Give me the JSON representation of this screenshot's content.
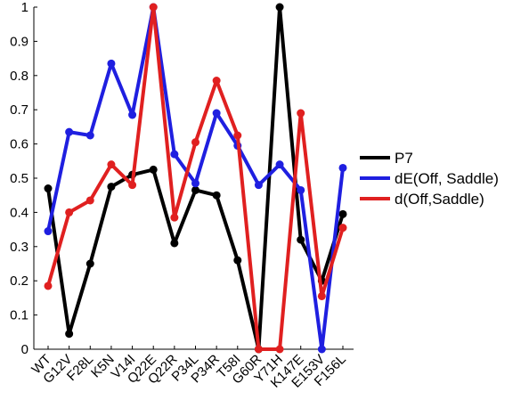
{
  "chart_data": {
    "type": "line",
    "categories": [
      "WT",
      "G12V",
      "F28L",
      "K5N",
      "V14I",
      "Q22E",
      "Q22R",
      "P34L",
      "P34R",
      "T58I",
      "G60R",
      "Y71H",
      "K147E",
      "E153V",
      "F156L"
    ],
    "yticks": [
      "0",
      "0.1",
      "0.2",
      "0.3",
      "0.4",
      "0.5",
      "0.6",
      "0.7",
      "0.8",
      "0.9",
      "1"
    ],
    "ylim": [
      0,
      1
    ],
    "series": [
      {
        "name": "P7",
        "color": "#000000",
        "values": [
          0.47,
          0.045,
          0.25,
          0.475,
          0.51,
          0.525,
          0.31,
          0.465,
          0.45,
          0.26,
          0.0,
          1.0,
          0.32,
          0.2,
          0.395
        ]
      },
      {
        "name": "dE(Off, Saddle)",
        "color": "#1f1fe0",
        "values": [
          0.345,
          0.635,
          0.625,
          0.835,
          0.685,
          1.0,
          0.57,
          0.485,
          0.69,
          0.595,
          0.48,
          0.54,
          0.465,
          0.0,
          0.53
        ]
      },
      {
        "name": "d(Off,Saddle)",
        "color": "#e02020",
        "values": [
          0.185,
          0.4,
          0.435,
          0.54,
          0.48,
          1.0,
          0.385,
          0.605,
          0.785,
          0.625,
          0.0,
          0.0,
          0.69,
          0.155,
          0.355
        ]
      }
    ],
    "legend_position": "right",
    "title": "",
    "xlabel": "",
    "ylabel": ""
  }
}
